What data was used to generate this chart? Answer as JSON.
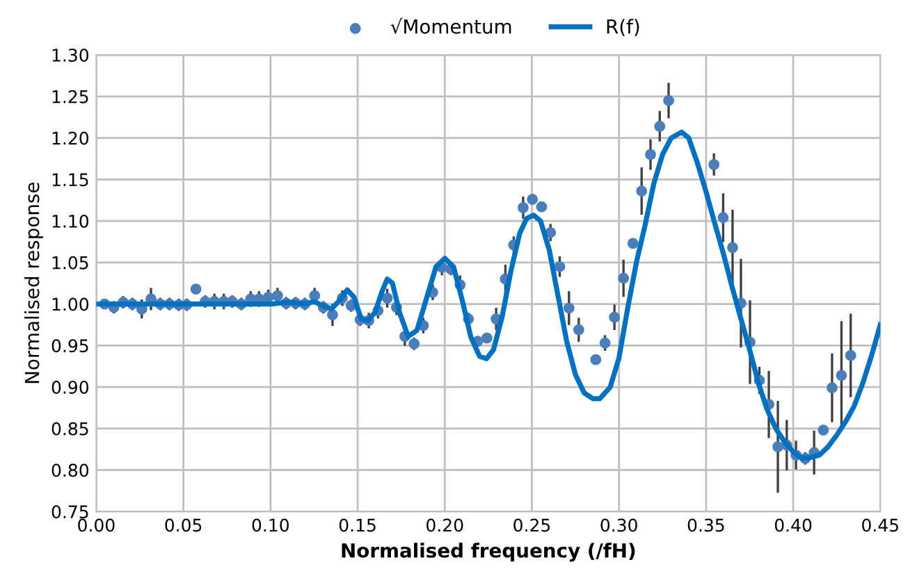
{
  "chart_data": {
    "type": "scatter",
    "xlabel": "Normalised frequency (/fH)",
    "ylabel": "Normalised response",
    "xlim": [
      0,
      0.45
    ],
    "ylim": [
      0.75,
      1.3
    ],
    "xticks": [
      {
        "value": 0,
        "label": "0.00"
      },
      {
        "value": 0.05,
        "label": "0.05"
      },
      {
        "value": 0.1,
        "label": "0.10"
      },
      {
        "value": 0.15,
        "label": "0.15"
      },
      {
        "value": 0.2,
        "label": "0.20"
      },
      {
        "value": 0.25,
        "label": "0.25"
      },
      {
        "value": 0.3,
        "label": "0.30"
      },
      {
        "value": 0.35,
        "label": "0.35"
      },
      {
        "value": 0.4,
        "label": "0.40"
      },
      {
        "value": 0.45,
        "label": "0.45"
      }
    ],
    "yticks": [
      {
        "value": 0.75,
        "label": "0.75"
      },
      {
        "value": 0.8,
        "label": "0.80"
      },
      {
        "value": 0.85,
        "label": "0.85"
      },
      {
        "value": 0.9,
        "label": "0.90"
      },
      {
        "value": 0.95,
        "label": "0.95"
      },
      {
        "value": 1.0,
        "label": "1.00"
      },
      {
        "value": 1.05,
        "label": "1.05"
      },
      {
        "value": 1.1,
        "label": "1.10"
      },
      {
        "value": 1.15,
        "label": "1.15"
      },
      {
        "value": 1.2,
        "label": "1.20"
      },
      {
        "value": 1.25,
        "label": "1.25"
      },
      {
        "value": 1.3,
        "label": "1.30"
      }
    ],
    "grid": true,
    "legend": "top",
    "series": [
      {
        "name": "√Momentum",
        "type": "scatter",
        "marker": "circle",
        "color": "#4a7ebb",
        "x": [
          0.0048,
          0.0101,
          0.0154,
          0.0207,
          0.0261,
          0.0314,
          0.0367,
          0.042,
          0.0473,
          0.0519,
          0.0572,
          0.0625,
          0.0678,
          0.0732,
          0.078,
          0.0832,
          0.0886,
          0.0934,
          0.0987,
          0.104,
          0.109,
          0.1144,
          0.1197,
          0.1253,
          0.1303,
          0.1356,
          0.1412,
          0.1463,
          0.1514,
          0.1564,
          0.1617,
          0.167,
          0.1723,
          0.1771,
          0.1824,
          0.1877,
          0.1931,
          0.1984,
          0.2035,
          0.2088,
          0.2136,
          0.2189,
          0.2242,
          0.2295,
          0.2348,
          0.2396,
          0.245,
          0.2503,
          0.2556,
          0.2607,
          0.266,
          0.2713,
          0.2769,
          0.2867,
          0.292,
          0.2974,
          0.3026,
          0.308,
          0.313,
          0.3181,
          0.3234,
          0.3285,
          0.3545,
          0.3598,
          0.3652,
          0.37,
          0.3752,
          0.3806,
          0.386,
          0.3912,
          0.3963,
          0.4016,
          0.4069,
          0.412,
          0.4173,
          0.4223,
          0.4277,
          0.433
        ],
        "values": [
          1.0,
          0.996,
          1.002,
          1.0,
          0.994,
          1.006,
          1.0,
          1.0,
          0.999,
          0.999,
          1.018,
          1.003,
          1.003,
          1.003,
          1.003,
          1.0,
          1.006,
          1.006,
          1.008,
          1.01,
          1.001,
          1.001,
          1.0,
          1.01,
          0.996,
          0.987,
          1.007,
          0.998,
          0.981,
          0.98,
          0.992,
          1.007,
          0.996,
          0.961,
          0.952,
          0.974,
          1.014,
          1.044,
          1.042,
          1.023,
          0.982,
          0.955,
          0.959,
          0.982,
          1.03,
          1.071,
          1.116,
          1.126,
          1.117,
          1.086,
          1.045,
          0.995,
          0.969,
          0.933,
          0.953,
          0.984,
          1.031,
          1.073,
          1.136,
          1.18,
          1.214,
          1.245,
          1.168,
          1.104,
          1.068,
          1.001,
          0.954,
          0.908,
          0.879,
          0.828,
          0.83,
          0.818,
          0.814,
          0.821,
          0.848,
          0.899,
          0.914,
          0.938
        ],
        "errors": [
          null,
          0.006,
          0.006,
          0.006,
          0.01,
          0.012,
          0.006,
          0.006,
          0.006,
          0.006,
          null,
          0.006,
          0.008,
          0.008,
          0.006,
          0.006,
          0.008,
          0.008,
          0.008,
          0.008,
          0.006,
          0.006,
          0.006,
          0.008,
          0.006,
          0.012,
          0.008,
          0.006,
          0.006,
          0.008,
          0.008,
          0.01,
          0.008,
          0.01,
          0.006,
          0.008,
          0.008,
          0.008,
          0.006,
          0.01,
          0.006,
          0.005,
          null,
          0.012,
          0.016,
          0.009,
          0.012,
          null,
          null,
          0.009,
          0.011,
          0.019,
          0.013,
          null,
          0.008,
          0.014,
          0.021,
          null,
          0.027,
          0.017,
          0.017,
          0.02,
          0.012,
          0.028,
          0.044,
          0.052,
          0.049,
          0.015,
          0.039,
          0.054,
          0.029,
          0.016,
          0.006,
          0.025,
          null,
          0.04,
          0.064,
          0.049
        ]
      },
      {
        "name": "R(f)",
        "type": "line",
        "marker": "none",
        "color": "#0070c0",
        "x": [
          0.0,
          0.05,
          0.1,
          0.11,
          0.12,
          0.125,
          0.13,
          0.135,
          0.14,
          0.144,
          0.148,
          0.152,
          0.156,
          0.16,
          0.164,
          0.167,
          0.17,
          0.174,
          0.179,
          0.184,
          0.19,
          0.195,
          0.2,
          0.205,
          0.21,
          0.215,
          0.22,
          0.224,
          0.228,
          0.233,
          0.238,
          0.243,
          0.247,
          0.251,
          0.255,
          0.26,
          0.265,
          0.27,
          0.275,
          0.28,
          0.285,
          0.289,
          0.295,
          0.3,
          0.305,
          0.31,
          0.315,
          0.32,
          0.325,
          0.33,
          0.336,
          0.34,
          0.345,
          0.35,
          0.355,
          0.36,
          0.365,
          0.37,
          0.375,
          0.38,
          0.385,
          0.39,
          0.395,
          0.4,
          0.405,
          0.41,
          0.415,
          0.42,
          0.425,
          0.43,
          0.435,
          0.44,
          0.445,
          0.45
        ],
        "values": [
          1.0,
          1.0,
          1.0,
          1.002,
          1.0,
          1.003,
          0.998,
          0.994,
          1.005,
          1.017,
          1.008,
          0.982,
          0.98,
          0.99,
          1.015,
          1.03,
          1.025,
          0.99,
          0.961,
          0.968,
          1.01,
          1.045,
          1.055,
          1.045,
          1.005,
          0.96,
          0.937,
          0.934,
          0.945,
          0.985,
          1.04,
          1.085,
          1.103,
          1.107,
          1.1,
          1.065,
          1.01,
          0.955,
          0.915,
          0.893,
          0.886,
          0.886,
          0.9,
          0.935,
          0.995,
          1.05,
          1.095,
          1.145,
          1.18,
          1.2,
          1.207,
          1.2,
          1.17,
          1.135,
          1.097,
          1.06,
          1.02,
          0.982,
          0.945,
          0.905,
          0.873,
          0.85,
          0.834,
          0.822,
          0.814,
          0.815,
          0.818,
          0.828,
          0.842,
          0.858,
          0.877,
          0.905,
          0.938,
          0.975
        ]
      }
    ]
  }
}
